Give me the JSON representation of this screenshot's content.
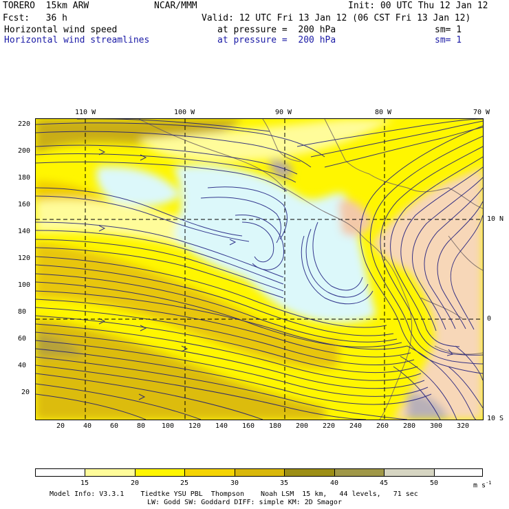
{
  "header": {
    "model": "TORERO  15km ARW",
    "center": "NCAR/MMM",
    "init": "Init: 00 UTC Thu 12 Jan 12",
    "fcst": "Fcst:   36 h",
    "valid": "Valid: 12 UTC Fri 13 Jan 12 (06 CST Fri 13 Jan 12)",
    "field1": {
      "name": "Horizontal wind speed",
      "level": "at pressure =  200 hPa",
      "sm": "sm= 1"
    },
    "field2": {
      "name": "Horizontal wind streamlines",
      "level": "at pressure =  200 hPa",
      "sm": "sm= 1"
    }
  },
  "map": {
    "top_lon_labels": [
      "110 W",
      "100 W",
      "90 W",
      "80 W",
      "70 W"
    ],
    "right_lat_labels": [
      "10 N",
      "0",
      "10 S"
    ],
    "y_ticks": [
      "220",
      "200",
      "180",
      "160",
      "140",
      "120",
      "100",
      "80",
      "60",
      "40",
      "20"
    ],
    "x_ticks": [
      "20",
      "40",
      "60",
      "80",
      "100",
      "120",
      "140",
      "160",
      "180",
      "200",
      "220",
      "240",
      "260",
      "280",
      "300",
      "320"
    ]
  },
  "colorbar": {
    "levels": [
      "15",
      "20",
      "25",
      "30",
      "35",
      "40",
      "45",
      "50"
    ],
    "units": "m s",
    "units_exp": "-1",
    "colors": [
      "#ffffff",
      "#fffc9a",
      "#fff600",
      "#f5d402",
      "#d9b80b",
      "#9c8e16",
      "#a09848",
      "#d6d5c2",
      "#ffffff"
    ]
  },
  "footer": {
    "line1": "Model Info: V3.3.1    Tiedtke YSU PBL  Thompson    Noah LSM  15 km,   44 levels,   71 sec",
    "line2": "LW: Godd SW: Goddard DIFF: simple KM: 2D Smagor"
  }
}
